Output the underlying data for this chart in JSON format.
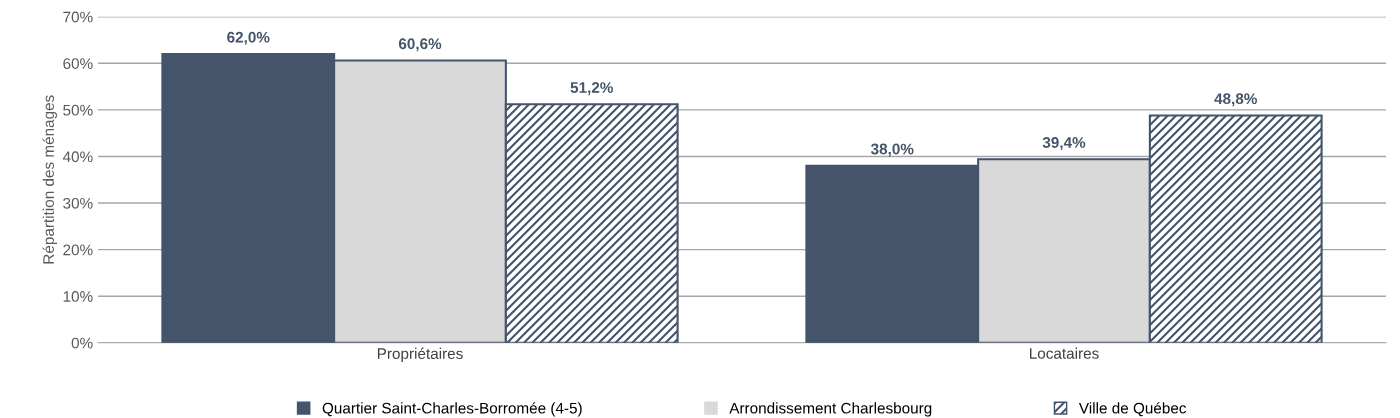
{
  "chart_data": {
    "type": "bar",
    "ylabel": "Répartition des ménages",
    "categories": [
      "Propriétaires",
      "Locataires"
    ],
    "series": [
      {
        "name": "Quartier Saint-Charles-Borromée (4-5)",
        "color": "#44546a",
        "values": [
          62.0,
          38.0
        ],
        "value_labels": [
          "62,0%",
          "38,0%"
        ]
      },
      {
        "name": "Arrondissement Charlesbourg",
        "color": "#d9d9d9",
        "values": [
          60.6,
          39.4
        ],
        "value_labels": [
          "60,6%",
          "39,4%"
        ]
      },
      {
        "name": "Ville de Québec",
        "color": "#44546a",
        "values": [
          51.2,
          48.8
        ],
        "value_labels": [
          "51,2%",
          "48,8%"
        ]
      }
    ],
    "ylim": [
      0,
      70
    ],
    "yticks": [
      {
        "value": 0,
        "label": "0%"
      },
      {
        "value": 10,
        "label": "10%"
      },
      {
        "value": 20,
        "label": "20%"
      },
      {
        "value": 30,
        "label": "30%"
      },
      {
        "value": 40,
        "label": "40%"
      },
      {
        "value": 50,
        "label": "50%"
      },
      {
        "value": 60,
        "label": "60%"
      },
      {
        "value": 70,
        "label": "70%"
      }
    ],
    "grid": "y",
    "legend": "bottom"
  }
}
